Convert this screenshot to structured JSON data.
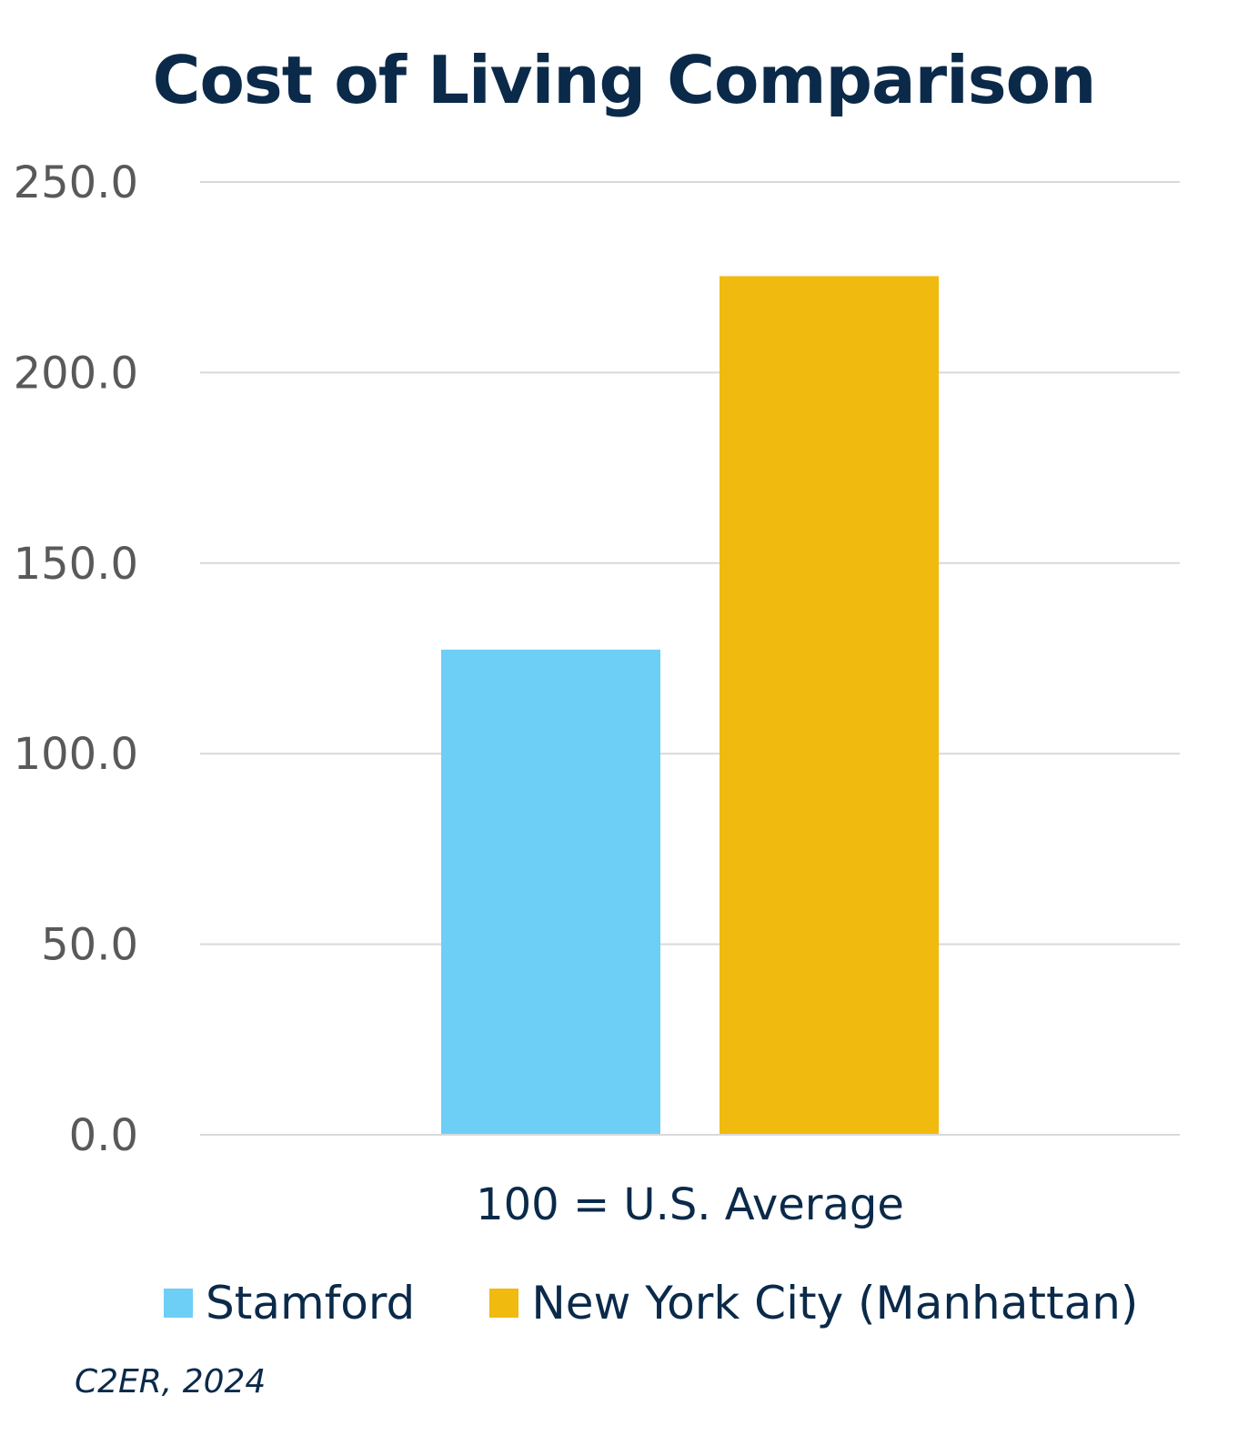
{
  "chart_data": {
    "type": "bar",
    "title": "Cost of Living Comparison",
    "categories": [
      "100 = U.S. Average"
    ],
    "series": [
      {
        "name": "Stamford",
        "values": [
          127.3
        ],
        "color": "#6dcff6"
      },
      {
        "name": "New York City (Manhattan)",
        "values": [
          225.3
        ],
        "color": "#f0ba0f"
      }
    ],
    "ylim": [
      0,
      250
    ],
    "yticks": [
      "0.0",
      "50.0",
      "100.0",
      "150.0",
      "200.0",
      "250.0"
    ],
    "grid": true,
    "legend_position": "bottom-left"
  },
  "source_note": "C2ER, 2024",
  "colors": {
    "title": "#0b2a4a",
    "gridline": "#d9d9d9",
    "tick_text": "#595959"
  }
}
